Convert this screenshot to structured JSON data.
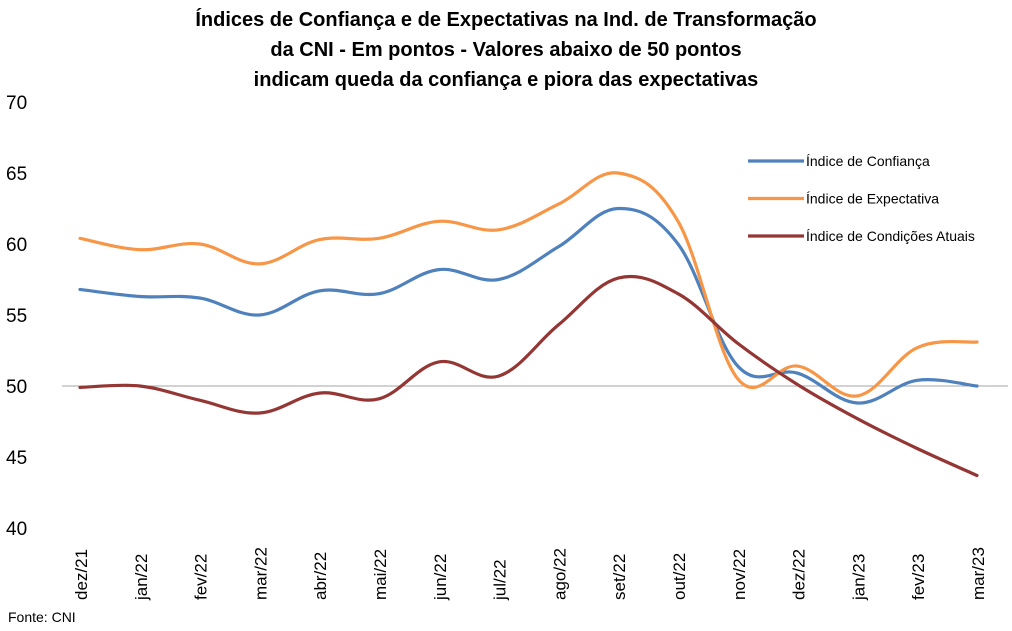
{
  "title_lines": [
    "Índices de Confiança e de Expectativas na Ind. de Transformação",
    "da CNI - Em pontos - Valores abaixo de 50 pontos",
    "indicam queda da confiança e piora das expectativas"
  ],
  "source": "Fonte: CNI",
  "chart_data": {
    "type": "line",
    "title": "Índices de Confiança e de Expectativas na Ind. de Transformação da CNI - Em pontos - Valores abaixo de 50 pontos indicam queda da confiança e piora das expectativas",
    "categories": [
      "dez/21",
      "jan/22",
      "fev/22",
      "mar/22",
      "abr/22",
      "mai/22",
      "jun/22",
      "jul/22",
      "ago/22",
      "set/22",
      "out/22",
      "nov/22",
      "dez/22",
      "jan/23",
      "fev/23",
      "mar/23"
    ],
    "ylim": [
      40,
      70
    ],
    "yticks": [
      40,
      45,
      50,
      55,
      60,
      65,
      70
    ],
    "reference_line": 50,
    "grid": false,
    "legend_position": "top-right",
    "series": [
      {
        "name": "Índice de Confiança",
        "color": "#4f81bd",
        "values": [
          56.8,
          56.3,
          56.2,
          55.0,
          56.7,
          56.5,
          58.2,
          57.5,
          59.8,
          62.5,
          60.0,
          51.4,
          50.9,
          48.8,
          50.4,
          50.0
        ]
      },
      {
        "name": "Índice de Expectativa",
        "color": "#f79646",
        "values": [
          60.4,
          59.6,
          60.0,
          58.6,
          60.3,
          60.4,
          61.6,
          61.0,
          62.8,
          65.0,
          61.6,
          50.5,
          51.4,
          49.3,
          52.7,
          53.1
        ]
      },
      {
        "name": "Índice de Condições Atuais",
        "color": "#943634",
        "values": [
          49.9,
          50.0,
          49.0,
          48.1,
          49.5,
          49.1,
          51.7,
          50.7,
          54.3,
          57.6,
          56.5,
          53.0,
          50.1,
          47.7,
          45.6,
          43.7
        ]
      }
    ]
  }
}
